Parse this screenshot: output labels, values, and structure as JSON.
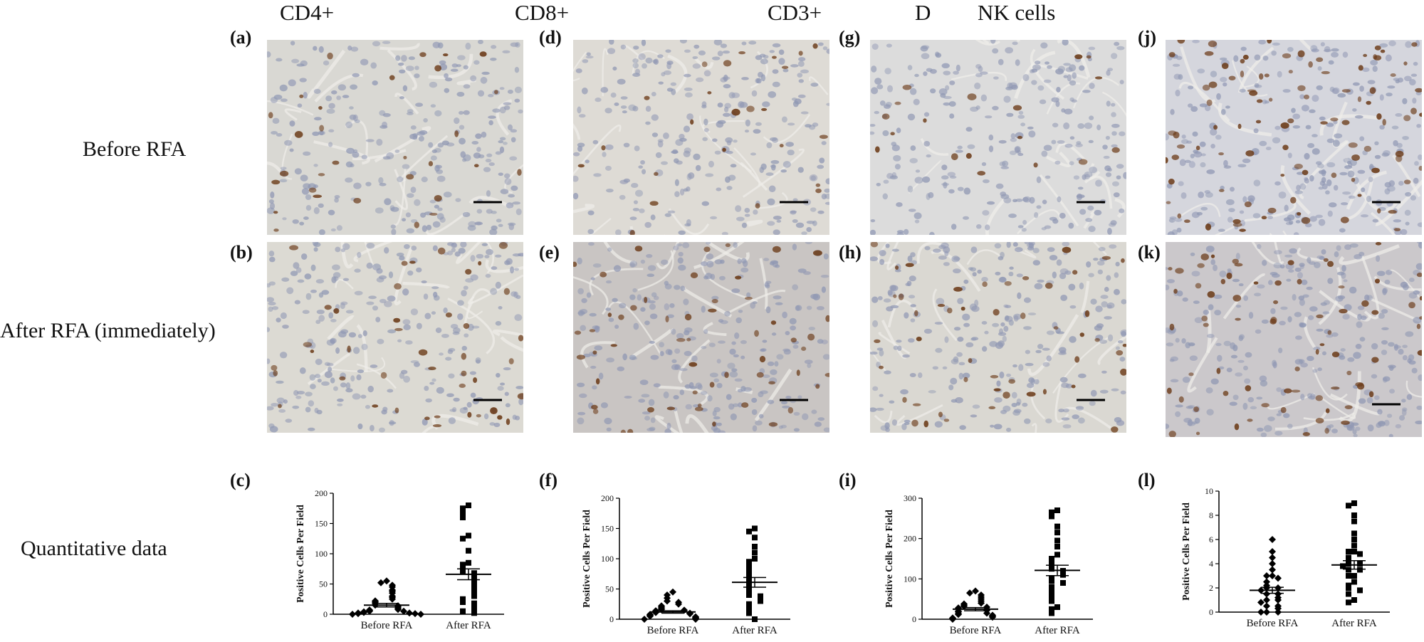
{
  "columns": [
    "CD4+",
    "CD8+",
    "CD3+",
    "NK cells"
  ],
  "column_prefix_D": "D",
  "row_labels": {
    "before": "Before RFA",
    "after": "After RFA (immediately)",
    "quant": "Quantitative data"
  },
  "panels": {
    "a": "(a)",
    "b": "(b)",
    "c": "(c)",
    "d": "(d)",
    "e": "(e)",
    "f": "(f)",
    "g": "(g)",
    "h": "(h)",
    "i": "(i)",
    "j": "(j)",
    "k": "(k)",
    "l": "(l)"
  },
  "micrographs": [
    {
      "id": "a",
      "marker": "CD4+",
      "bg": "#d9d8d3",
      "stain_density": 0.25
    },
    {
      "id": "b",
      "marker": "CD4+",
      "bg": "#dcdad3",
      "stain_density": 0.35
    },
    {
      "id": "d",
      "marker": "CD8+",
      "bg": "#dedbd5",
      "stain_density": 0.2
    },
    {
      "id": "e",
      "marker": "CD8+",
      "bg": "#c9c5c3",
      "stain_density": 0.45
    },
    {
      "id": "g",
      "marker": "CD3+",
      "bg": "#dcdcdc",
      "stain_density": 0.15
    },
    {
      "id": "h",
      "marker": "CD3+",
      "bg": "#dad8d2",
      "stain_density": 0.4
    },
    {
      "id": "j",
      "marker": "NK cells",
      "bg": "#d5d6dd",
      "stain_density": 0.8
    },
    {
      "id": "k",
      "marker": "NK cells",
      "bg": "#cbc8cb",
      "stain_density": 0.6
    }
  ],
  "chart_data": [
    {
      "panel": "c",
      "type": "scatter",
      "ylabel": "Positive Cells Per Field",
      "categories": [
        "Before RFA",
        "After RFA"
      ],
      "ylim": [
        0,
        200
      ],
      "yticks": [
        0,
        50,
        100,
        150,
        200
      ],
      "series": [
        {
          "marker": "diamond",
          "mean": 15,
          "sem": 3,
          "values": [
            55,
            52,
            48,
            45,
            40,
            38,
            35,
            30,
            28,
            25,
            22,
            20,
            18,
            15,
            14,
            12,
            10,
            8,
            7,
            6,
            5,
            5,
            4,
            3,
            2,
            2,
            1,
            1,
            0,
            0
          ]
        },
        {
          "marker": "square",
          "mean": 66,
          "sem": 9,
          "values": [
            180,
            175,
            168,
            160,
            130,
            125,
            105,
            85,
            82,
            75,
            70,
            68,
            65,
            60,
            58,
            55,
            50,
            48,
            45,
            40,
            38,
            35,
            30,
            25,
            20,
            18,
            15,
            10,
            5,
            2
          ]
        }
      ]
    },
    {
      "panel": "f",
      "type": "scatter",
      "ylabel": "Positive Cells Per Field",
      "categories": [
        "Before RFA",
        "After RFA"
      ],
      "ylim": [
        0,
        200
      ],
      "yticks": [
        0,
        50,
        100,
        150,
        200
      ],
      "series": [
        {
          "marker": "diamond",
          "mean": 12,
          "sem": 2,
          "values": [
            45,
            40,
            35,
            30,
            28,
            25,
            22,
            20,
            18,
            16,
            15,
            14,
            12,
            11,
            10,
            9,
            8,
            7,
            6,
            5,
            4,
            3,
            2,
            1,
            0,
            0
          ]
        },
        {
          "marker": "square",
          "mean": 61,
          "sem": 8,
          "values": [
            150,
            145,
            135,
            120,
            110,
            100,
            95,
            90,
            85,
            80,
            75,
            70,
            65,
            60,
            55,
            50,
            45,
            40,
            38,
            35,
            30,
            25,
            20,
            15,
            10,
            0
          ]
        }
      ]
    },
    {
      "panel": "i",
      "type": "scatter",
      "ylabel": "Positive Cells Per Field",
      "categories": [
        "Before RFA",
        "After RFA"
      ],
      "ylim": [
        0,
        300
      ],
      "yticks": [
        0,
        100,
        200,
        300
      ],
      "series": [
        {
          "marker": "diamond",
          "mean": 25,
          "sem": 4,
          "values": [
            70,
            65,
            60,
            55,
            50,
            45,
            40,
            38,
            35,
            32,
            30,
            28,
            25,
            22,
            20,
            18,
            15,
            14,
            12,
            10,
            8,
            6,
            5,
            3,
            2,
            0
          ]
        },
        {
          "marker": "square",
          "mean": 121,
          "sem": 13,
          "values": [
            270,
            265,
            255,
            230,
            215,
            195,
            180,
            160,
            150,
            140,
            130,
            125,
            120,
            115,
            110,
            100,
            95,
            90,
            80,
            70,
            60,
            50,
            45,
            30,
            25,
            15
          ]
        }
      ]
    },
    {
      "panel": "l",
      "type": "scatter",
      "ylabel": "Positive Cells Per Field",
      "categories": [
        "Before RFA",
        "After RFA"
      ],
      "ylim": [
        0,
        10
      ],
      "yticks": [
        0,
        2,
        4,
        6,
        8,
        10
      ],
      "series": [
        {
          "marker": "diamond",
          "mean": 1.8,
          "sem": 0.25,
          "values": [
            6,
            5,
            4.5,
            4,
            3.5,
            3,
            3,
            2.8,
            2.5,
            2.2,
            2,
            2,
            1.8,
            1.5,
            1.5,
            1.2,
            1,
            1,
            0.8,
            0.5,
            0.5,
            0.3,
            0,
            0,
            0
          ]
        },
        {
          "marker": "square",
          "mean": 3.9,
          "sem": 0.35,
          "values": [
            9,
            8.8,
            8,
            7.5,
            6.5,
            6,
            5.5,
            5,
            5,
            4.8,
            4.5,
            4.2,
            4,
            4,
            3.8,
            3.5,
            3.5,
            3,
            3,
            2.5,
            2.2,
            2,
            1.8,
            1.5,
            1,
            0.8
          ]
        }
      ]
    }
  ]
}
